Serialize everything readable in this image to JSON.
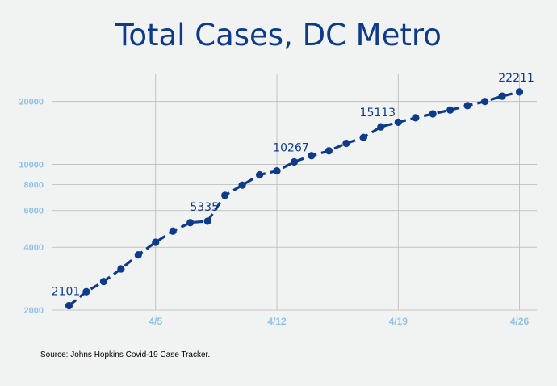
{
  "chart_data": {
    "type": "line",
    "title": "Total Cases, DC Metro",
    "xlabel": "",
    "ylabel": "",
    "yscale": "log",
    "ylim": [
      2000,
      27000
    ],
    "yticks": [
      2000,
      4000,
      6000,
      8000,
      10000,
      20000
    ],
    "ytick_labels": [
      "2000",
      "4000",
      "6000",
      "8000",
      "10000",
      "20000"
    ],
    "x_range": [
      "2020-03-30",
      "2020-04-27"
    ],
    "xticks": [
      "2020-04-05",
      "2020-04-12",
      "2020-04-19",
      "2020-04-26"
    ],
    "xtick_labels": [
      "4/5",
      "4/12",
      "4/19",
      "4/26"
    ],
    "grid": true,
    "line_color": "#0e3a8c",
    "line_style": "dashed",
    "series": [
      {
        "name": "",
        "points": [
          {
            "x": "2020-03-31",
            "y": 2101
          },
          {
            "x": "2020-04-01",
            "y": 2450
          },
          {
            "x": "2020-04-02",
            "y": 2740
          },
          {
            "x": "2020-04-03",
            "y": 3150
          },
          {
            "x": "2020-04-04",
            "y": 3680
          },
          {
            "x": "2020-04-05",
            "y": 4230
          },
          {
            "x": "2020-04-06",
            "y": 4780
          },
          {
            "x": "2020-04-07",
            "y": 5250
          },
          {
            "x": "2020-04-08",
            "y": 5335
          },
          {
            "x": "2020-04-09",
            "y": 7100
          },
          {
            "x": "2020-04-10",
            "y": 7950
          },
          {
            "x": "2020-04-11",
            "y": 8900
          },
          {
            "x": "2020-04-12",
            "y": 9300
          },
          {
            "x": "2020-04-13",
            "y": 10267
          },
          {
            "x": "2020-04-14",
            "y": 11000
          },
          {
            "x": "2020-04-15",
            "y": 11600
          },
          {
            "x": "2020-04-16",
            "y": 12600
          },
          {
            "x": "2020-04-17",
            "y": 13450
          },
          {
            "x": "2020-04-18",
            "y": 15113
          },
          {
            "x": "2020-04-19",
            "y": 15900
          },
          {
            "x": "2020-04-20",
            "y": 16700
          },
          {
            "x": "2020-04-21",
            "y": 17450
          },
          {
            "x": "2020-04-22",
            "y": 18200
          },
          {
            "x": "2020-04-23",
            "y": 19100
          },
          {
            "x": "2020-04-24",
            "y": 20000
          },
          {
            "x": "2020-04-25",
            "y": 21200
          },
          {
            "x": "2020-04-26",
            "y": 22211
          }
        ],
        "labels": [
          {
            "x": "2020-03-31",
            "y": 2101,
            "text": "2101"
          },
          {
            "x": "2020-04-08",
            "y": 5335,
            "text": "5335"
          },
          {
            "x": "2020-04-13",
            "y": 10267,
            "text": "10267"
          },
          {
            "x": "2020-04-18",
            "y": 15113,
            "text": "15113"
          },
          {
            "x": "2020-04-26",
            "y": 22211,
            "text": "22211"
          }
        ]
      }
    ]
  },
  "source_note": "Source: Johns Hopkins Covid-19 Case Tracker."
}
